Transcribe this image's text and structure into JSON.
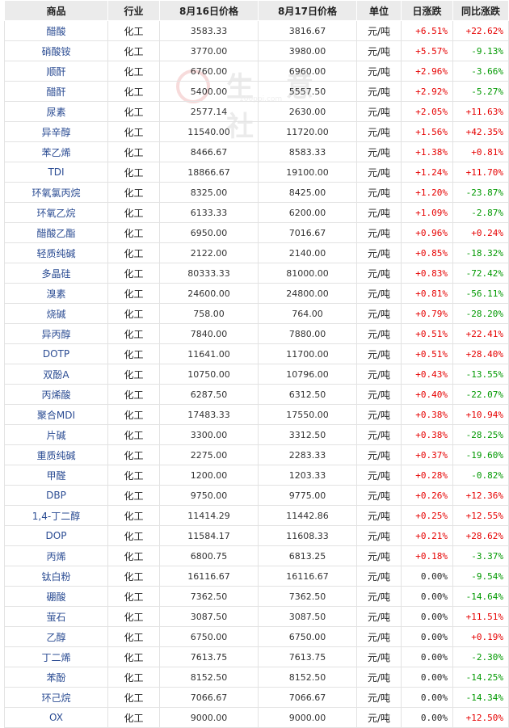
{
  "headers": [
    "商品",
    "行业",
    "8月16日价格",
    "8月17日价格",
    "单位",
    "日涨跌",
    "同比涨跌"
  ],
  "watermark": {
    "text": "生 意 社",
    "url": "100ppi.com"
  },
  "colors": {
    "up": "#e60000",
    "down": "#009900",
    "flat": "#222222",
    "link": "#2b4c93"
  },
  "rows": [
    {
      "name": "醋酸",
      "industry": "化工",
      "p1": "3583.33",
      "p2": "3816.67",
      "unit": "元/吨",
      "day": "+6.51%",
      "yoy": "+22.62%"
    },
    {
      "name": "硝酸铵",
      "industry": "化工",
      "p1": "3770.00",
      "p2": "3980.00",
      "unit": "元/吨",
      "day": "+5.57%",
      "yoy": "-9.13%"
    },
    {
      "name": "顺酐",
      "industry": "化工",
      "p1": "6760.00",
      "p2": "6960.00",
      "unit": "元/吨",
      "day": "+2.96%",
      "yoy": "-3.66%"
    },
    {
      "name": "醋酐",
      "industry": "化工",
      "p1": "5400.00",
      "p2": "5557.50",
      "unit": "元/吨",
      "day": "+2.92%",
      "yoy": "-5.27%"
    },
    {
      "name": "尿素",
      "industry": "化工",
      "p1": "2577.14",
      "p2": "2630.00",
      "unit": "元/吨",
      "day": "+2.05%",
      "yoy": "+11.63%"
    },
    {
      "name": "异辛醇",
      "industry": "化工",
      "p1": "11540.00",
      "p2": "11720.00",
      "unit": "元/吨",
      "day": "+1.56%",
      "yoy": "+42.35%"
    },
    {
      "name": "苯乙烯",
      "industry": "化工",
      "p1": "8466.67",
      "p2": "8583.33",
      "unit": "元/吨",
      "day": "+1.38%",
      "yoy": "+0.81%"
    },
    {
      "name": "TDI",
      "industry": "化工",
      "p1": "18866.67",
      "p2": "19100.00",
      "unit": "元/吨",
      "day": "+1.24%",
      "yoy": "+11.70%"
    },
    {
      "name": "环氧氯丙烷",
      "industry": "化工",
      "p1": "8325.00",
      "p2": "8425.00",
      "unit": "元/吨",
      "day": "+1.20%",
      "yoy": "-23.87%"
    },
    {
      "name": "环氧乙烷",
      "industry": "化工",
      "p1": "6133.33",
      "p2": "6200.00",
      "unit": "元/吨",
      "day": "+1.09%",
      "yoy": "-2.87%"
    },
    {
      "name": "醋酸乙酯",
      "industry": "化工",
      "p1": "6950.00",
      "p2": "7016.67",
      "unit": "元/吨",
      "day": "+0.96%",
      "yoy": "+0.24%"
    },
    {
      "name": "轻质纯碱",
      "industry": "化工",
      "p1": "2122.00",
      "p2": "2140.00",
      "unit": "元/吨",
      "day": "+0.85%",
      "yoy": "-18.32%"
    },
    {
      "name": "多晶硅",
      "industry": "化工",
      "p1": "80333.33",
      "p2": "81000.00",
      "unit": "元/吨",
      "day": "+0.83%",
      "yoy": "-72.42%"
    },
    {
      "name": "溴素",
      "industry": "化工",
      "p1": "24600.00",
      "p2": "24800.00",
      "unit": "元/吨",
      "day": "+0.81%",
      "yoy": "-56.11%"
    },
    {
      "name": "烧碱",
      "industry": "化工",
      "p1": "758.00",
      "p2": "764.00",
      "unit": "元/吨",
      "day": "+0.79%",
      "yoy": "-28.20%"
    },
    {
      "name": "异丙醇",
      "industry": "化工",
      "p1": "7840.00",
      "p2": "7880.00",
      "unit": "元/吨",
      "day": "+0.51%",
      "yoy": "+22.41%"
    },
    {
      "name": "DOTP",
      "industry": "化工",
      "p1": "11641.00",
      "p2": "11700.00",
      "unit": "元/吨",
      "day": "+0.51%",
      "yoy": "+28.40%"
    },
    {
      "name": "双酚A",
      "industry": "化工",
      "p1": "10750.00",
      "p2": "10796.00",
      "unit": "元/吨",
      "day": "+0.43%",
      "yoy": "-13.55%"
    },
    {
      "name": "丙烯酸",
      "industry": "化工",
      "p1": "6287.50",
      "p2": "6312.50",
      "unit": "元/吨",
      "day": "+0.40%",
      "yoy": "-22.07%"
    },
    {
      "name": "聚合MDI",
      "industry": "化工",
      "p1": "17483.33",
      "p2": "17550.00",
      "unit": "元/吨",
      "day": "+0.38%",
      "yoy": "+10.94%"
    },
    {
      "name": "片碱",
      "industry": "化工",
      "p1": "3300.00",
      "p2": "3312.50",
      "unit": "元/吨",
      "day": "+0.38%",
      "yoy": "-28.25%"
    },
    {
      "name": "重质纯碱",
      "industry": "化工",
      "p1": "2275.00",
      "p2": "2283.33",
      "unit": "元/吨",
      "day": "+0.37%",
      "yoy": "-19.60%"
    },
    {
      "name": "甲醛",
      "industry": "化工",
      "p1": "1200.00",
      "p2": "1203.33",
      "unit": "元/吨",
      "day": "+0.28%",
      "yoy": "-0.82%"
    },
    {
      "name": "DBP",
      "industry": "化工",
      "p1": "9750.00",
      "p2": "9775.00",
      "unit": "元/吨",
      "day": "+0.26%",
      "yoy": "+12.36%"
    },
    {
      "name": "1,4-丁二醇",
      "industry": "化工",
      "p1": "11414.29",
      "p2": "11442.86",
      "unit": "元/吨",
      "day": "+0.25%",
      "yoy": "+12.55%"
    },
    {
      "name": "DOP",
      "industry": "化工",
      "p1": "11584.17",
      "p2": "11608.33",
      "unit": "元/吨",
      "day": "+0.21%",
      "yoy": "+28.62%"
    },
    {
      "name": "丙烯",
      "industry": "化工",
      "p1": "6800.75",
      "p2": "6813.25",
      "unit": "元/吨",
      "day": "+0.18%",
      "yoy": "-3.37%"
    },
    {
      "name": "钛白粉",
      "industry": "化工",
      "p1": "16116.67",
      "p2": "16116.67",
      "unit": "元/吨",
      "day": "0.00%",
      "yoy": "-9.54%"
    },
    {
      "name": "硼酸",
      "industry": "化工",
      "p1": "7362.50",
      "p2": "7362.50",
      "unit": "元/吨",
      "day": "0.00%",
      "yoy": "-14.64%"
    },
    {
      "name": "萤石",
      "industry": "化工",
      "p1": "3087.50",
      "p2": "3087.50",
      "unit": "元/吨",
      "day": "0.00%",
      "yoy": "+11.51%"
    },
    {
      "name": "乙醇",
      "industry": "化工",
      "p1": "6750.00",
      "p2": "6750.00",
      "unit": "元/吨",
      "day": "0.00%",
      "yoy": "+0.19%"
    },
    {
      "name": "丁二烯",
      "industry": "化工",
      "p1": "7613.75",
      "p2": "7613.75",
      "unit": "元/吨",
      "day": "0.00%",
      "yoy": "-2.30%"
    },
    {
      "name": "苯酚",
      "industry": "化工",
      "p1": "8152.50",
      "p2": "8152.50",
      "unit": "元/吨",
      "day": "0.00%",
      "yoy": "-14.25%"
    },
    {
      "name": "环己烷",
      "industry": "化工",
      "p1": "7066.67",
      "p2": "7066.67",
      "unit": "元/吨",
      "day": "0.00%",
      "yoy": "-14.34%"
    },
    {
      "name": "OX",
      "industry": "化工",
      "p1": "9000.00",
      "p2": "9000.00",
      "unit": "元/吨",
      "day": "0.00%",
      "yoy": "+12.50%"
    }
  ]
}
